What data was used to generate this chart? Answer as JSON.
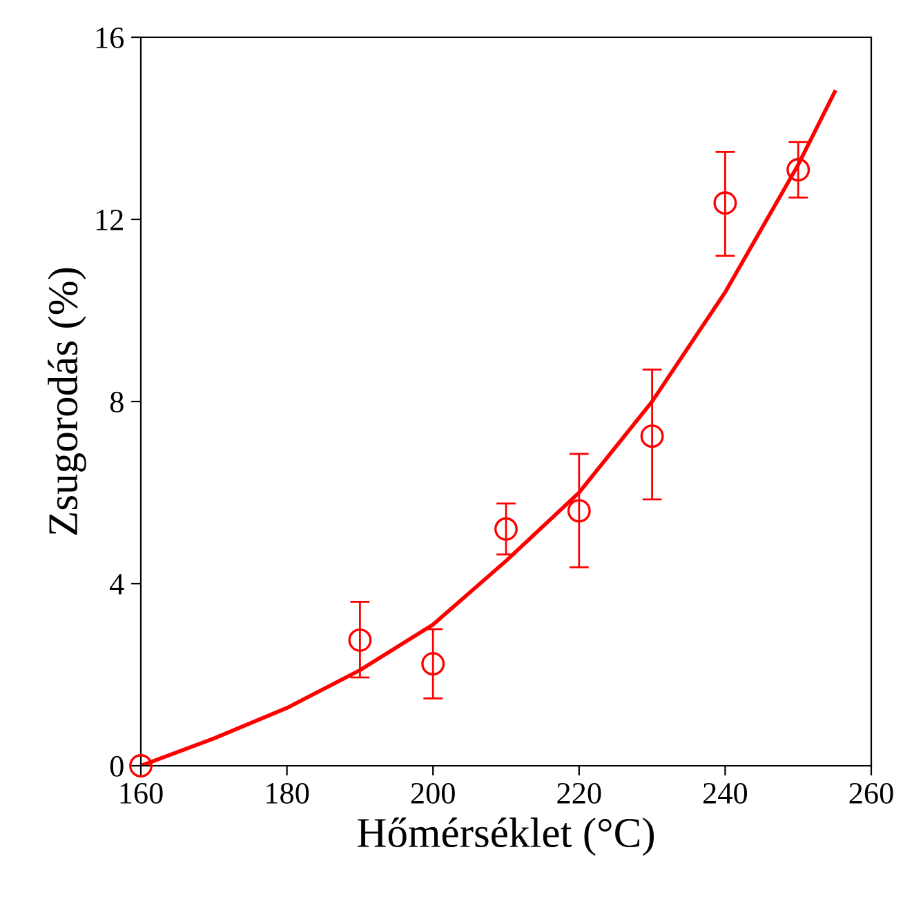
{
  "chart_data": {
    "type": "scatter",
    "xlabel": "Hőmérséklet (°C)",
    "ylabel": "Zsugorodás (%)",
    "xlim": [
      160,
      260
    ],
    "xticks": [
      160,
      180,
      200,
      220,
      240,
      260
    ],
    "ylim": [
      0,
      16
    ],
    "yticks": [
      0,
      4,
      8,
      12,
      16
    ],
    "grid": false,
    "legend": false,
    "series": [
      {
        "color": "#ff0000",
        "marker": "circle",
        "x": [
          160,
          190,
          200,
          210,
          220,
          230,
          240,
          250
        ],
        "values": [
          0,
          2.76,
          2.24,
          5.2,
          5.6,
          7.24,
          12.36,
          13.09
        ],
        "errors": [
          null,
          [
            1.94,
            3.6
          ],
          [
            1.48,
            3.0
          ],
          [
            4.64,
            5.76
          ],
          [
            4.36,
            6.85
          ],
          [
            5.85,
            8.7
          ],
          [
            11.2,
            13.48
          ],
          [
            12.48,
            13.7
          ]
        ]
      },
      {
        "type": "line",
        "color": "#ff0000",
        "marker": "none",
        "line_style": "solid",
        "x": [
          160,
          170,
          180,
          190,
          200,
          210,
          220,
          230,
          240,
          250,
          255
        ],
        "values": [
          0,
          0.6,
          1.27,
          2.1,
          3.1,
          4.5,
          6.0,
          8.0,
          10.4,
          13.2,
          14.8
        ]
      }
    ]
  }
}
